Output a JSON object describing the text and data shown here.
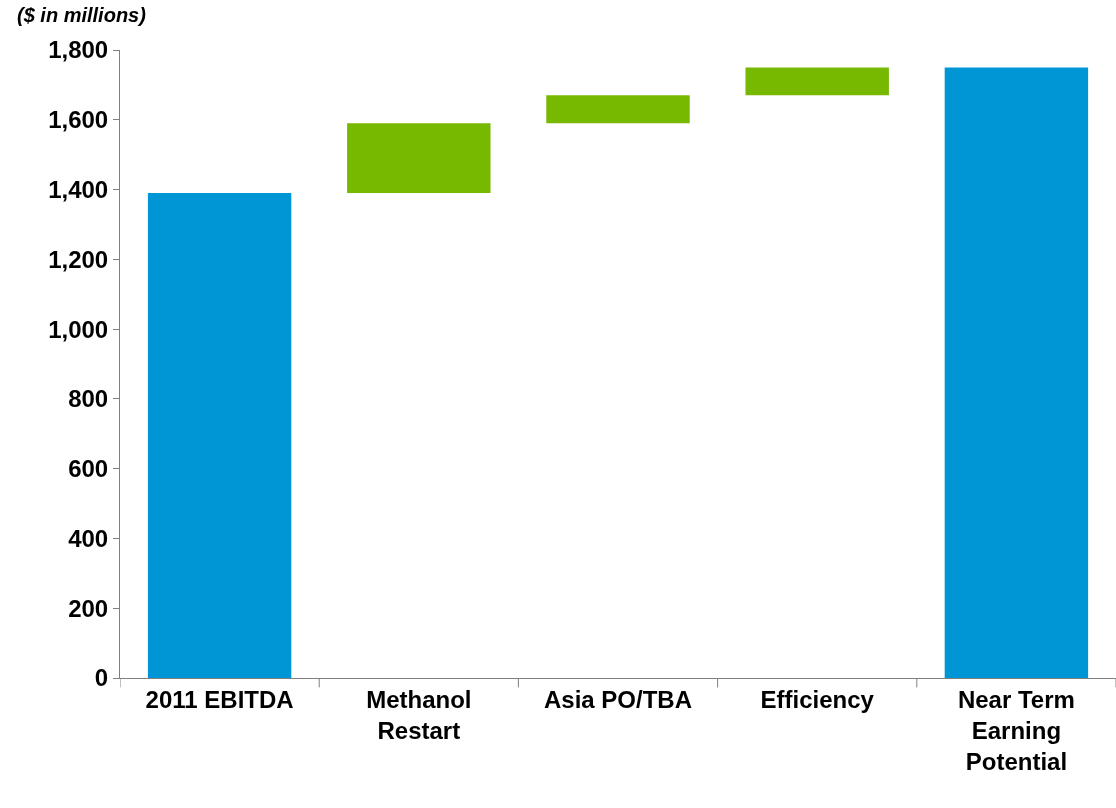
{
  "chart_data": {
    "type": "bar",
    "ylabel": "($ in millions)",
    "categories": [
      "2011 EBITDA",
      "Methanol\nRestart",
      "Asia PO/TBA",
      "Efficiency",
      "Near Term\nEarning\nPotential"
    ],
    "values": [
      1390,
      200,
      80,
      80,
      1750
    ],
    "base": [
      0,
      1390,
      1590,
      1670,
      0
    ],
    "colors": [
      "#0096d6",
      "#77b800",
      "#77b800",
      "#77b800",
      "#0096d6"
    ],
    "ylim": [
      0,
      1800
    ],
    "yticks": [
      {
        "value": 0,
        "label": "0"
      },
      {
        "value": 200,
        "label": "200"
      },
      {
        "value": 400,
        "label": "400"
      },
      {
        "value": 600,
        "label": "600"
      },
      {
        "value": 800,
        "label": "800"
      },
      {
        "value": 1000,
        "label": "1,000"
      },
      {
        "value": 1200,
        "label": "1,200"
      },
      {
        "value": 1400,
        "label": "1,400"
      },
      {
        "value": 1600,
        "label": "1,600"
      },
      {
        "value": 1800,
        "label": "1,800"
      }
    ]
  }
}
